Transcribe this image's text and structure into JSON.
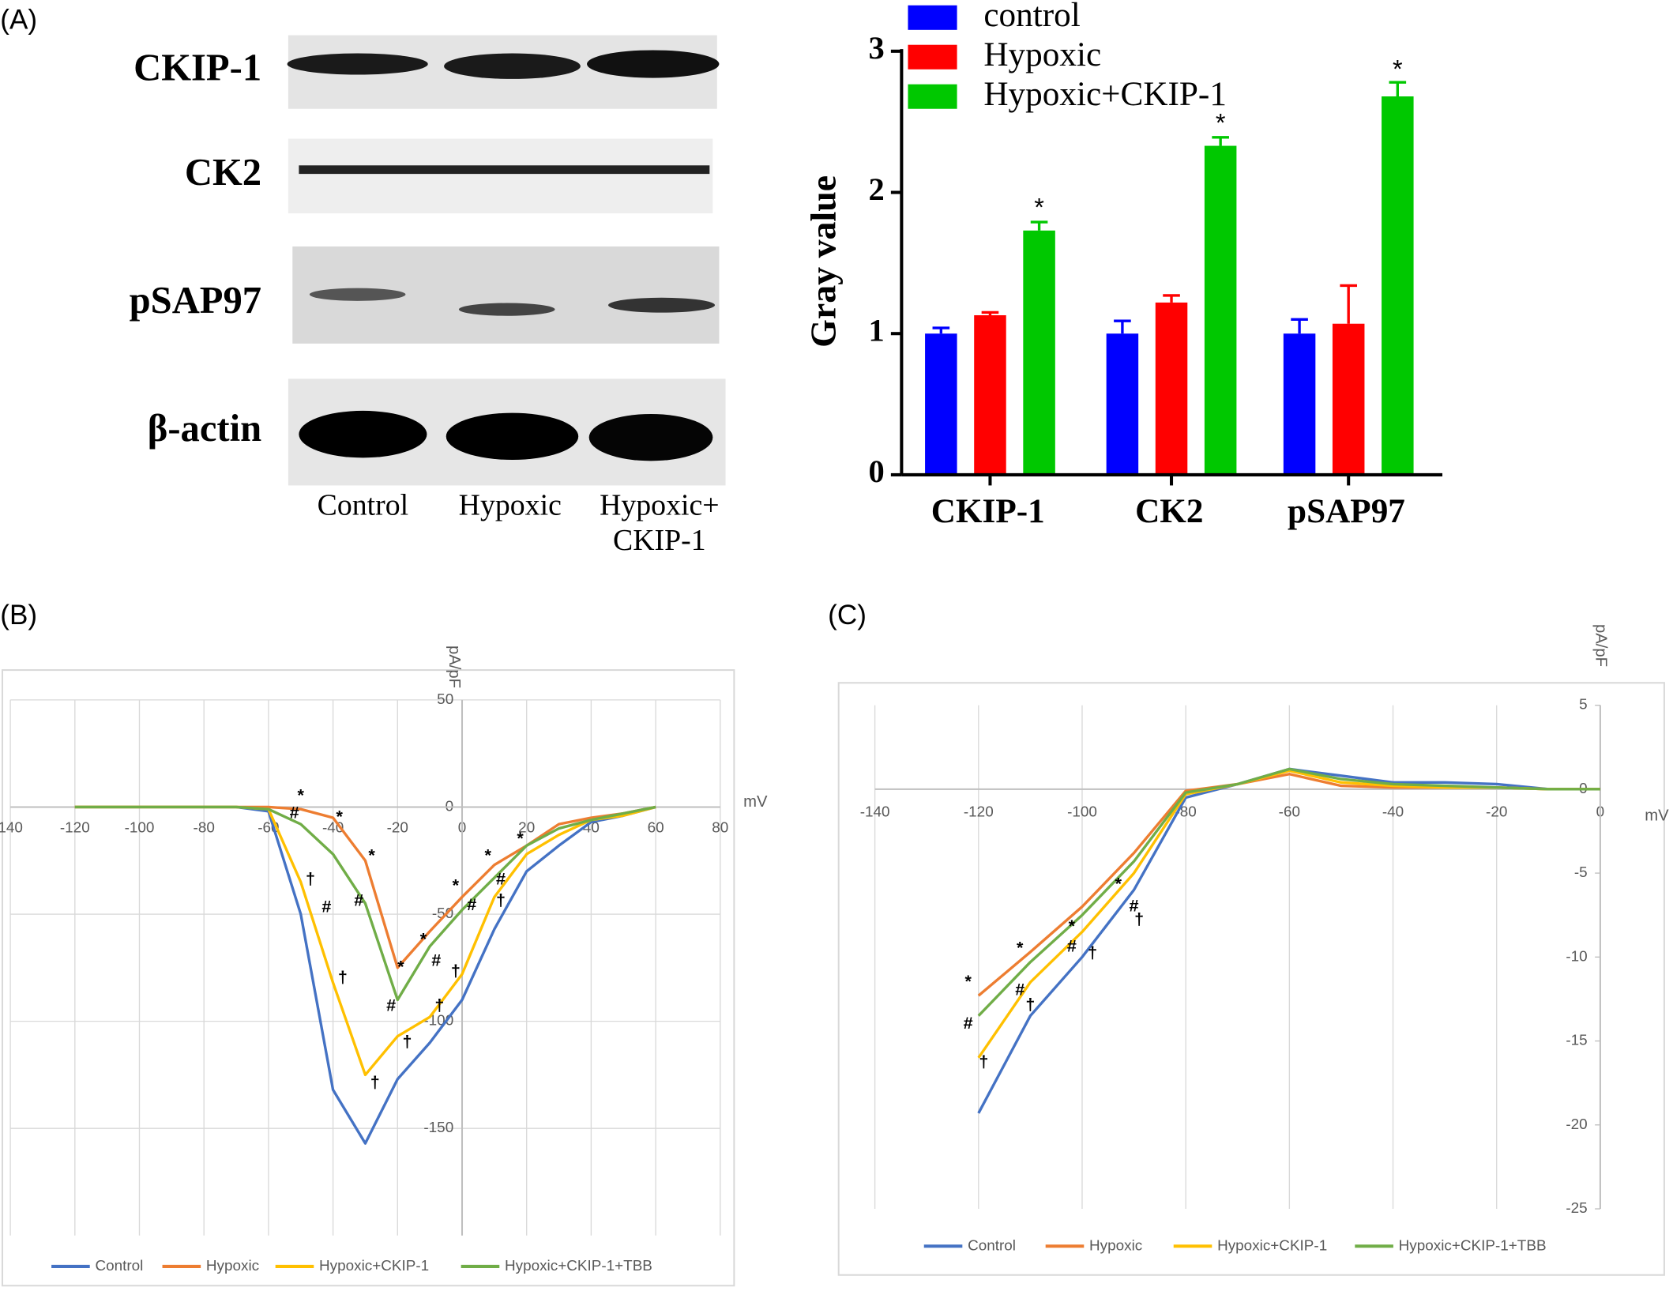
{
  "panels": [
    "(A)",
    "(B)",
    "(C)"
  ],
  "blot": {
    "rows": [
      "CKIP-1",
      "CK2",
      "pSAP97",
      "β-actin"
    ],
    "columns": [
      [
        "Control"
      ],
      [
        "Hypoxic"
      ],
      [
        "Hypoxic+",
        "CKIP-1"
      ]
    ]
  },
  "chart_data": [
    {
      "type": "bar",
      "ylabel": "Gray value",
      "categories": [
        "CKIP-1",
        "CK2",
        "pSAP97"
      ],
      "series": [
        {
          "name": "control",
          "color": "#0000ff",
          "values": [
            1.0,
            1.0,
            1.0
          ],
          "errors": [
            0.04,
            0.09,
            0.1
          ]
        },
        {
          "name": "Hypoxic",
          "color": "#ff0000",
          "values": [
            1.13,
            1.22,
            1.07
          ],
          "errors": [
            0.02,
            0.05,
            0.27
          ]
        },
        {
          "name": "Hypoxic+CKIP-1",
          "color": "#00c800",
          "values": [
            1.73,
            2.33,
            2.68
          ],
          "errors": [
            0.06,
            0.06,
            0.1
          ]
        }
      ],
      "annotations": [
        {
          "text": "*",
          "x": "CKIP-1",
          "y": 1.88
        },
        {
          "text": "*",
          "x": "CK2",
          "y": 2.48
        },
        {
          "text": "*",
          "x": "pSAP97",
          "y": 2.86
        }
      ],
      "ylim": [
        0,
        3
      ],
      "yticks": [
        0,
        1,
        2,
        3
      ]
    },
    {
      "type": "line",
      "xlabel": "mV",
      "ylabel": "pA/pF",
      "grid": "both",
      "x": [
        -120,
        -110,
        -100,
        -90,
        -80,
        -70,
        -60,
        -50,
        -40,
        -30,
        -20,
        -10,
        0,
        10,
        20,
        30,
        40,
        50,
        60
      ],
      "series": [
        {
          "name": "Control",
          "color": "#4472c4",
          "values": [
            0,
            0,
            0,
            0,
            0,
            0,
            -2,
            -50,
            -132,
            -157,
            -127,
            -110,
            -90,
            -57,
            -30,
            -18,
            -7,
            -4,
            0
          ]
        },
        {
          "name": "Hypoxic",
          "color": "#ed7d31",
          "values": [
            0,
            0,
            0,
            0,
            0,
            0,
            0,
            -1,
            -5,
            -25,
            -75,
            -58,
            -42,
            -27,
            -18,
            -8,
            -5,
            -3,
            0
          ]
        },
        {
          "name": "Hypoxic+CKIP-1",
          "color": "#ffc000",
          "values": [
            0,
            0,
            0,
            0,
            0,
            0,
            -1,
            -35,
            -82,
            -125,
            -107,
            -98,
            -78,
            -42,
            -22,
            -13,
            -6,
            -4,
            0
          ]
        },
        {
          "name": "Hypoxic+CKIP-1+TBB",
          "color": "#70ad47",
          "values": [
            0,
            0,
            0,
            0,
            0,
            0,
            -1,
            -8,
            -22,
            -45,
            -90,
            -65,
            -48,
            -33,
            -18,
            -10,
            -6,
            -3,
            0
          ]
        }
      ],
      "annotations": [
        {
          "text": "*",
          "x": -50,
          "y": 5
        },
        {
          "text": "*",
          "x": -38,
          "y": -5
        },
        {
          "text": "*",
          "x": -28,
          "y": -23
        },
        {
          "text": "*",
          "x": -19,
          "y": -75
        },
        {
          "text": "*",
          "x": -12,
          "y": -62
        },
        {
          "text": "*",
          "x": -2,
          "y": -37
        },
        {
          "text": "*",
          "x": 8,
          "y": -23
        },
        {
          "text": "*",
          "x": 18,
          "y": -15
        },
        {
          "text": "#",
          "x": -52,
          "y": -3
        },
        {
          "text": "#",
          "x": -42,
          "y": -47
        },
        {
          "text": "#",
          "x": -32,
          "y": -44
        },
        {
          "text": "#",
          "x": -22,
          "y": -93
        },
        {
          "text": "#",
          "x": -8,
          "y": -72
        },
        {
          "text": "#",
          "x": 3,
          "y": -46
        },
        {
          "text": "#",
          "x": 12,
          "y": -34
        },
        {
          "text": "†",
          "x": -47,
          "y": -34
        },
        {
          "text": "†",
          "x": -37,
          "y": -80
        },
        {
          "text": "†",
          "x": -27,
          "y": -129
        },
        {
          "text": "†",
          "x": -17,
          "y": -110
        },
        {
          "text": "†",
          "x": -7,
          "y": -93
        },
        {
          "text": "†",
          "x": -2,
          "y": -77
        },
        {
          "text": "†",
          "x": 12,
          "y": -44
        }
      ],
      "xlim": [
        -140,
        80
      ],
      "xticks": [
        {
          "value": -140,
          "label": "140"
        },
        -120,
        -100,
        -80,
        -60,
        -40,
        -20,
        0,
        20,
        40,
        60,
        80
      ],
      "ylim": [
        -200,
        50
      ],
      "yticks": [
        50,
        0,
        -50,
        -100,
        -150
      ]
    },
    {
      "type": "line",
      "xlabel": "mV",
      "ylabel": "pA/pF",
      "grid": "x",
      "x": [
        -120,
        -110,
        -100,
        -90,
        -80,
        -70,
        -60,
        -50,
        -40,
        -30,
        -20,
        -10,
        0
      ],
      "series": [
        {
          "name": "Control",
          "color": "#4472c4",
          "values": [
            -19.3,
            -13.5,
            -10,
            -6,
            -0.5,
            0.3,
            1.2,
            0.8,
            0.4,
            0.4,
            0.3,
            0,
            0
          ]
        },
        {
          "name": "Hypoxic",
          "color": "#ed7d31",
          "values": [
            -12.3,
            -9.7,
            -7,
            -3.8,
            -0.1,
            0.3,
            0.9,
            0.2,
            0.1,
            0.1,
            0.1,
            0,
            0
          ]
        },
        {
          "name": "Hypoxic+CKIP-1",
          "color": "#ffc000",
          "values": [
            -16,
            -11.5,
            -8.5,
            -5,
            -0.3,
            0.3,
            1.1,
            0.4,
            0.2,
            0.1,
            0.1,
            0,
            0
          ]
        },
        {
          "name": "Hypoxic+CKIP-1+TBB",
          "color": "#70ad47",
          "values": [
            -13.5,
            -10.3,
            -7.5,
            -4.3,
            -0.2,
            0.3,
            1.2,
            0.6,
            0.3,
            0.2,
            0.1,
            0,
            0
          ]
        }
      ],
      "annotations": [
        {
          "text": "*",
          "x": -122,
          "y": -11.5
        },
        {
          "text": "*",
          "x": -112,
          "y": -9.5
        },
        {
          "text": "*",
          "x": -102,
          "y": -8.2
        },
        {
          "text": "*",
          "x": -93,
          "y": -5.7
        },
        {
          "text": "#",
          "x": -122,
          "y": -14
        },
        {
          "text": "#",
          "x": -112,
          "y": -12
        },
        {
          "text": "#",
          "x": -102,
          "y": -9.4
        },
        {
          "text": "#",
          "x": -90,
          "y": -7
        },
        {
          "text": "†",
          "x": -119,
          "y": -16.3
        },
        {
          "text": "†",
          "x": -110,
          "y": -12.9
        },
        {
          "text": "†",
          "x": -98,
          "y": -9.8
        },
        {
          "text": "†",
          "x": -89,
          "y": -7.8
        }
      ],
      "xlim": [
        -140,
        0
      ],
      "xticks": [
        -140,
        -120,
        -100,
        -80,
        -60,
        -40,
        -20,
        0
      ],
      "ylim": [
        -25,
        5
      ],
      "yticks": [
        5,
        0,
        -5,
        -10,
        -15,
        -20,
        -25
      ]
    }
  ]
}
